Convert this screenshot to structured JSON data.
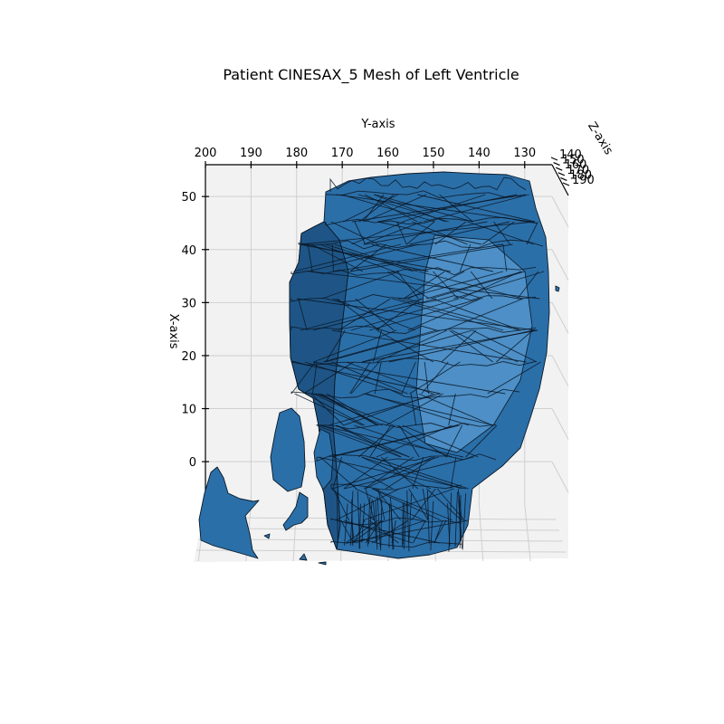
{
  "chart_data": {
    "type": "3d-mesh",
    "title": "Patient CINESAX_5 Mesh of Left Ventricle",
    "xlabel": "X-axis",
    "ylabel": "Y-axis",
    "zlabel": "Z-axis",
    "x_ticks": [
      "0",
      "10",
      "20",
      "30",
      "40",
      "50"
    ],
    "y_ticks": [
      "200",
      "190",
      "180",
      "170",
      "160",
      "150",
      "140",
      "130"
    ],
    "z_ticks": [
      "140",
      "150",
      "160",
      "170",
      "180",
      "190"
    ],
    "x_range": [
      -8,
      56
    ],
    "y_range": [
      200,
      124
    ],
    "z_range": [
      140,
      190
    ],
    "grid": true,
    "mesh_color": "#2b6fa8",
    "edge_color": "#0a1a2a"
  }
}
